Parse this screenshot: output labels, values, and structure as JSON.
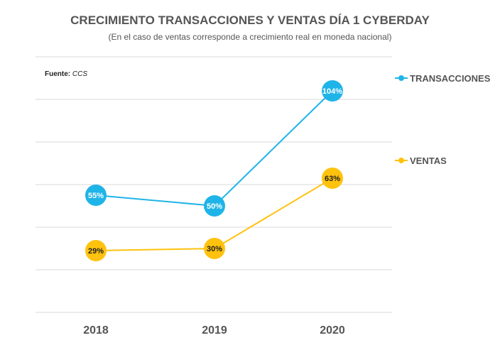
{
  "source": {
    "label": "Fuente:",
    "value": "CCS"
  },
  "chart_data": {
    "type": "line",
    "title": "CRECIMIENTO TRANSACCIONES Y VENTAS DÍA 1 CYBERDAY",
    "subtitle": "(En el caso de ventas corresponde a crecimiento real en moneda nacional)",
    "categories": [
      "2018",
      "2019",
      "2020"
    ],
    "ylim": [
      0,
      120
    ],
    "grid": true,
    "legend_placement": "right",
    "series": [
      {
        "name": "TRANSACCIONES",
        "color": "#1fb4e8",
        "label_color": "#ffffff",
        "values": [
          55,
          50,
          104
        ],
        "labels": [
          "55%",
          "50%",
          "104%"
        ]
      },
      {
        "name": "VENTAS",
        "color": "#ffc20e",
        "label_color": "#222222",
        "values": [
          29,
          30,
          63
        ],
        "labels": [
          "29%",
          "30%",
          "63%"
        ]
      }
    ]
  }
}
